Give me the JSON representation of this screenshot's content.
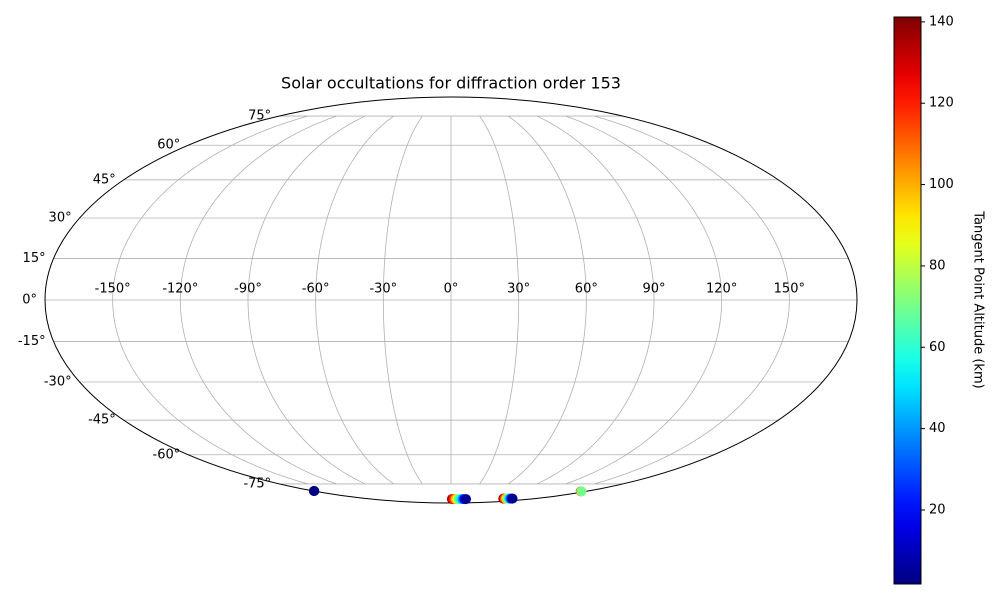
{
  "chart_data": {
    "type": "scatter",
    "projection": "mollweide",
    "title": "Solar occultations for diffraction order 153",
    "xlim": [
      -180,
      180
    ],
    "ylim": [
      -90,
      90
    ],
    "xticks": [
      {
        "value": -150,
        "label": "-150°"
      },
      {
        "value": -120,
        "label": "-120°"
      },
      {
        "value": -90,
        "label": "-90°"
      },
      {
        "value": -60,
        "label": "-60°"
      },
      {
        "value": -30,
        "label": "-30°"
      },
      {
        "value": 0,
        "label": "0°"
      },
      {
        "value": 30,
        "label": "30°"
      },
      {
        "value": 60,
        "label": "60°"
      },
      {
        "value": 90,
        "label": "90°"
      },
      {
        "value": 120,
        "label": "120°"
      },
      {
        "value": 150,
        "label": "150°"
      }
    ],
    "yticks": [
      {
        "value": -75,
        "label": "-75°"
      },
      {
        "value": -60,
        "label": "-60°"
      },
      {
        "value": -45,
        "label": "-45°"
      },
      {
        "value": -30,
        "label": "-30°"
      },
      {
        "value": -15,
        "label": "-15°"
      },
      {
        "value": 0,
        "label": "0°"
      },
      {
        "value": 15,
        "label": "15°"
      },
      {
        "value": 30,
        "label": "30°"
      },
      {
        "value": 45,
        "label": "45°"
      },
      {
        "value": 60,
        "label": "60°"
      },
      {
        "value": 75,
        "label": "75°"
      }
    ],
    "grid": true,
    "colormap": "jet",
    "clim": [
      1.8,
      141.2
    ],
    "cticks": [
      20,
      40,
      60,
      80,
      100,
      120,
      140
    ],
    "colorbar_label": "Tangent Point Altitude (km)",
    "points": {
      "x": [
        -179.0,
        -179.3,
        -179.6,
        2,
        6,
        10,
        14,
        18,
        22,
        26,
        30,
        34,
        112,
        115,
        118,
        121,
        124,
        127,
        130,
        132,
        172,
        173
      ],
      "y": [
        -79.4,
        -79.4,
        -79.4,
        -85.4,
        -85.4,
        -85.4,
        -85.4,
        -85.4,
        -85.4,
        -85.4,
        -85.4,
        -85.4,
        -85.0,
        -85.0,
        -85.0,
        -85.0,
        -85.0,
        -85.0,
        -85.0,
        -85.0,
        -79.6,
        -79.6
      ],
      "c": [
        8,
        5,
        2,
        135,
        120,
        100,
        85,
        70,
        55,
        40,
        20,
        5,
        135,
        115,
        95,
        75,
        55,
        35,
        15,
        4,
        110,
        70
      ]
    }
  }
}
